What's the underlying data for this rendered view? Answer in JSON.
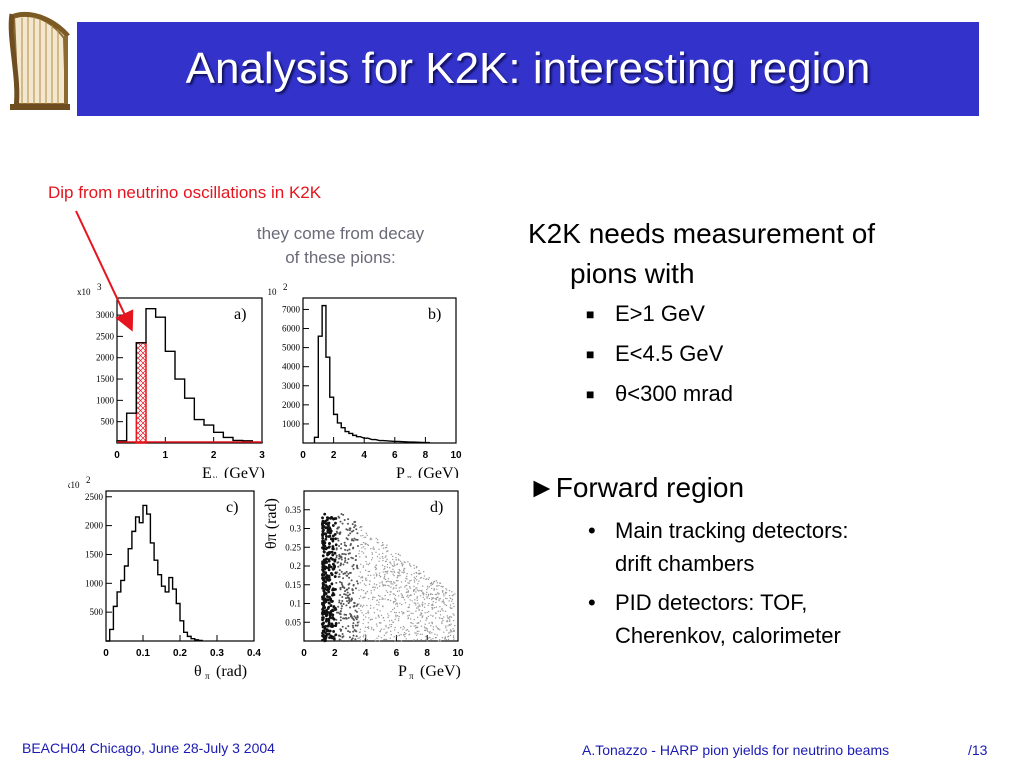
{
  "title": "Analysis for K2K: interesting region",
  "annotations": {
    "red_note": "Dip from neutrino oscillations in K2K",
    "grey_note_line1": "they come from decay",
    "grey_note_line2": "of these pions:"
  },
  "colors": {
    "title_bg": "#3333cc",
    "red": "#e6141e",
    "footer": "#1a1ab4"
  },
  "bullets": {
    "main1_line1": "K2K needs measurement of",
    "main1_line2": "pions with",
    "sub1": "E>1 GeV",
    "sub2": "E<4.5 GeV",
    "sub3": "θ<300 mrad",
    "main2": "►Forward region",
    "sub4_line1": "Main tracking detectors:",
    "sub4_line2": "drift chambers",
    "sub5_line1": "PID detectors: TOF,",
    "sub5_line2": "Cherenkov, calorimeter"
  },
  "footer": {
    "left": "BEACH04 Chicago, June 28-July 3 2004",
    "right": "A.Tonazzo - HARP pion yields for neutrino beams",
    "page": "/13"
  },
  "chart_data": [
    {
      "type": "bar",
      "panel_label": "a)",
      "scale_label": "x10",
      "scale_exp": "3",
      "xlabel": "E",
      "xlabel_sub": "ν",
      "xlabel_unit": "(GeV)",
      "xlim": [
        0,
        3
      ],
      "ylim": [
        0,
        3400
      ],
      "xticks": [
        "0",
        "1",
        "2",
        "3"
      ],
      "yticks": [
        500,
        1000,
        1500,
        2000,
        2500,
        3000
      ],
      "ytick_labels": [
        "500",
        "1000",
        "1500",
        "2000",
        "2500",
        "3000"
      ],
      "bin_width": 0.2,
      "x": [
        0.0,
        0.2,
        0.4,
        0.6,
        0.8,
        1.0,
        1.2,
        1.4,
        1.6,
        1.8,
        2.0,
        2.2,
        2.4,
        2.6,
        2.8
      ],
      "values": [
        50,
        700,
        2350,
        3150,
        2950,
        2150,
        1500,
        1050,
        550,
        420,
        250,
        130,
        60,
        50,
        20
      ],
      "highlight_range": [
        0.4,
        0.6
      ]
    },
    {
      "type": "bar",
      "panel_label": "b)",
      "scale_label": "x10",
      "scale_exp": "2",
      "xlabel": "P",
      "xlabel_sub": "π",
      "xlabel_unit": "(GeV)",
      "xlim": [
        0,
        10
      ],
      "ylim": [
        0,
        7600
      ],
      "xticks": [
        "0",
        "2",
        "4",
        "6",
        "8",
        "10"
      ],
      "yticks": [
        1000,
        2000,
        3000,
        4000,
        5000,
        6000,
        7000
      ],
      "ytick_labels": [
        "1000",
        "2000",
        "3000",
        "4000",
        "5000",
        "6000",
        "7000"
      ],
      "bin_width": 0.25,
      "x": [
        0.75,
        1.0,
        1.25,
        1.5,
        1.75,
        2.0,
        2.25,
        2.5,
        2.75,
        3.0,
        3.25,
        3.5,
        4.0,
        4.5,
        5.0,
        6.0,
        7.0,
        8.0
      ],
      "values": [
        300,
        5600,
        7200,
        4500,
        2400,
        1500,
        1050,
        800,
        600,
        500,
        400,
        330,
        250,
        180,
        130,
        80,
        50,
        25
      ]
    },
    {
      "type": "bar",
      "panel_label": "c)",
      "scale_label": "x10",
      "scale_exp": "2",
      "xlabel": "θ",
      "xlabel_sub": "π",
      "xlabel_unit": "(rad)",
      "xlim": [
        0,
        0.4
      ],
      "ylim": [
        0,
        2600
      ],
      "xticks": [
        "0",
        "0.1",
        "0.2",
        "0.3",
        "0.4"
      ],
      "yticks": [
        500,
        1000,
        1500,
        2000,
        2500
      ],
      "ytick_labels": [
        "500",
        "1000",
        "1500",
        "2000",
        "2500"
      ],
      "bin_width": 0.01,
      "x": [
        0.0,
        0.01,
        0.02,
        0.03,
        0.04,
        0.05,
        0.06,
        0.07,
        0.08,
        0.09,
        0.1,
        0.11,
        0.12,
        0.13,
        0.14,
        0.15,
        0.16,
        0.17,
        0.18,
        0.19,
        0.2,
        0.21,
        0.22,
        0.23,
        0.24,
        0.25
      ],
      "values": [
        0,
        200,
        600,
        850,
        1050,
        1300,
        1600,
        1900,
        2150,
        2050,
        2350,
        2200,
        1700,
        1400,
        1150,
        950,
        850,
        1100,
        900,
        650,
        350,
        150,
        80,
        40,
        20,
        10
      ]
    },
    {
      "type": "scatter",
      "panel_label": "d)",
      "xlabel": "P",
      "xlabel_sub": "π",
      "xlabel_unit": "(GeV)",
      "ylabel": "θ",
      "ylabel_sub": "π",
      "ylabel_unit": "(rad)",
      "xlim": [
        0,
        10
      ],
      "ylim": [
        0,
        0.4
      ],
      "xticks": [
        "0",
        "2",
        "4",
        "6",
        "8",
        "10"
      ],
      "yticks": [
        0.05,
        0.1,
        0.15,
        0.2,
        0.25,
        0.3,
        0.35
      ],
      "ytick_labels": [
        "0.05",
        "0.1",
        "0.15",
        "0.2",
        "0.25",
        "0.3",
        "0.35"
      ]
    }
  ]
}
